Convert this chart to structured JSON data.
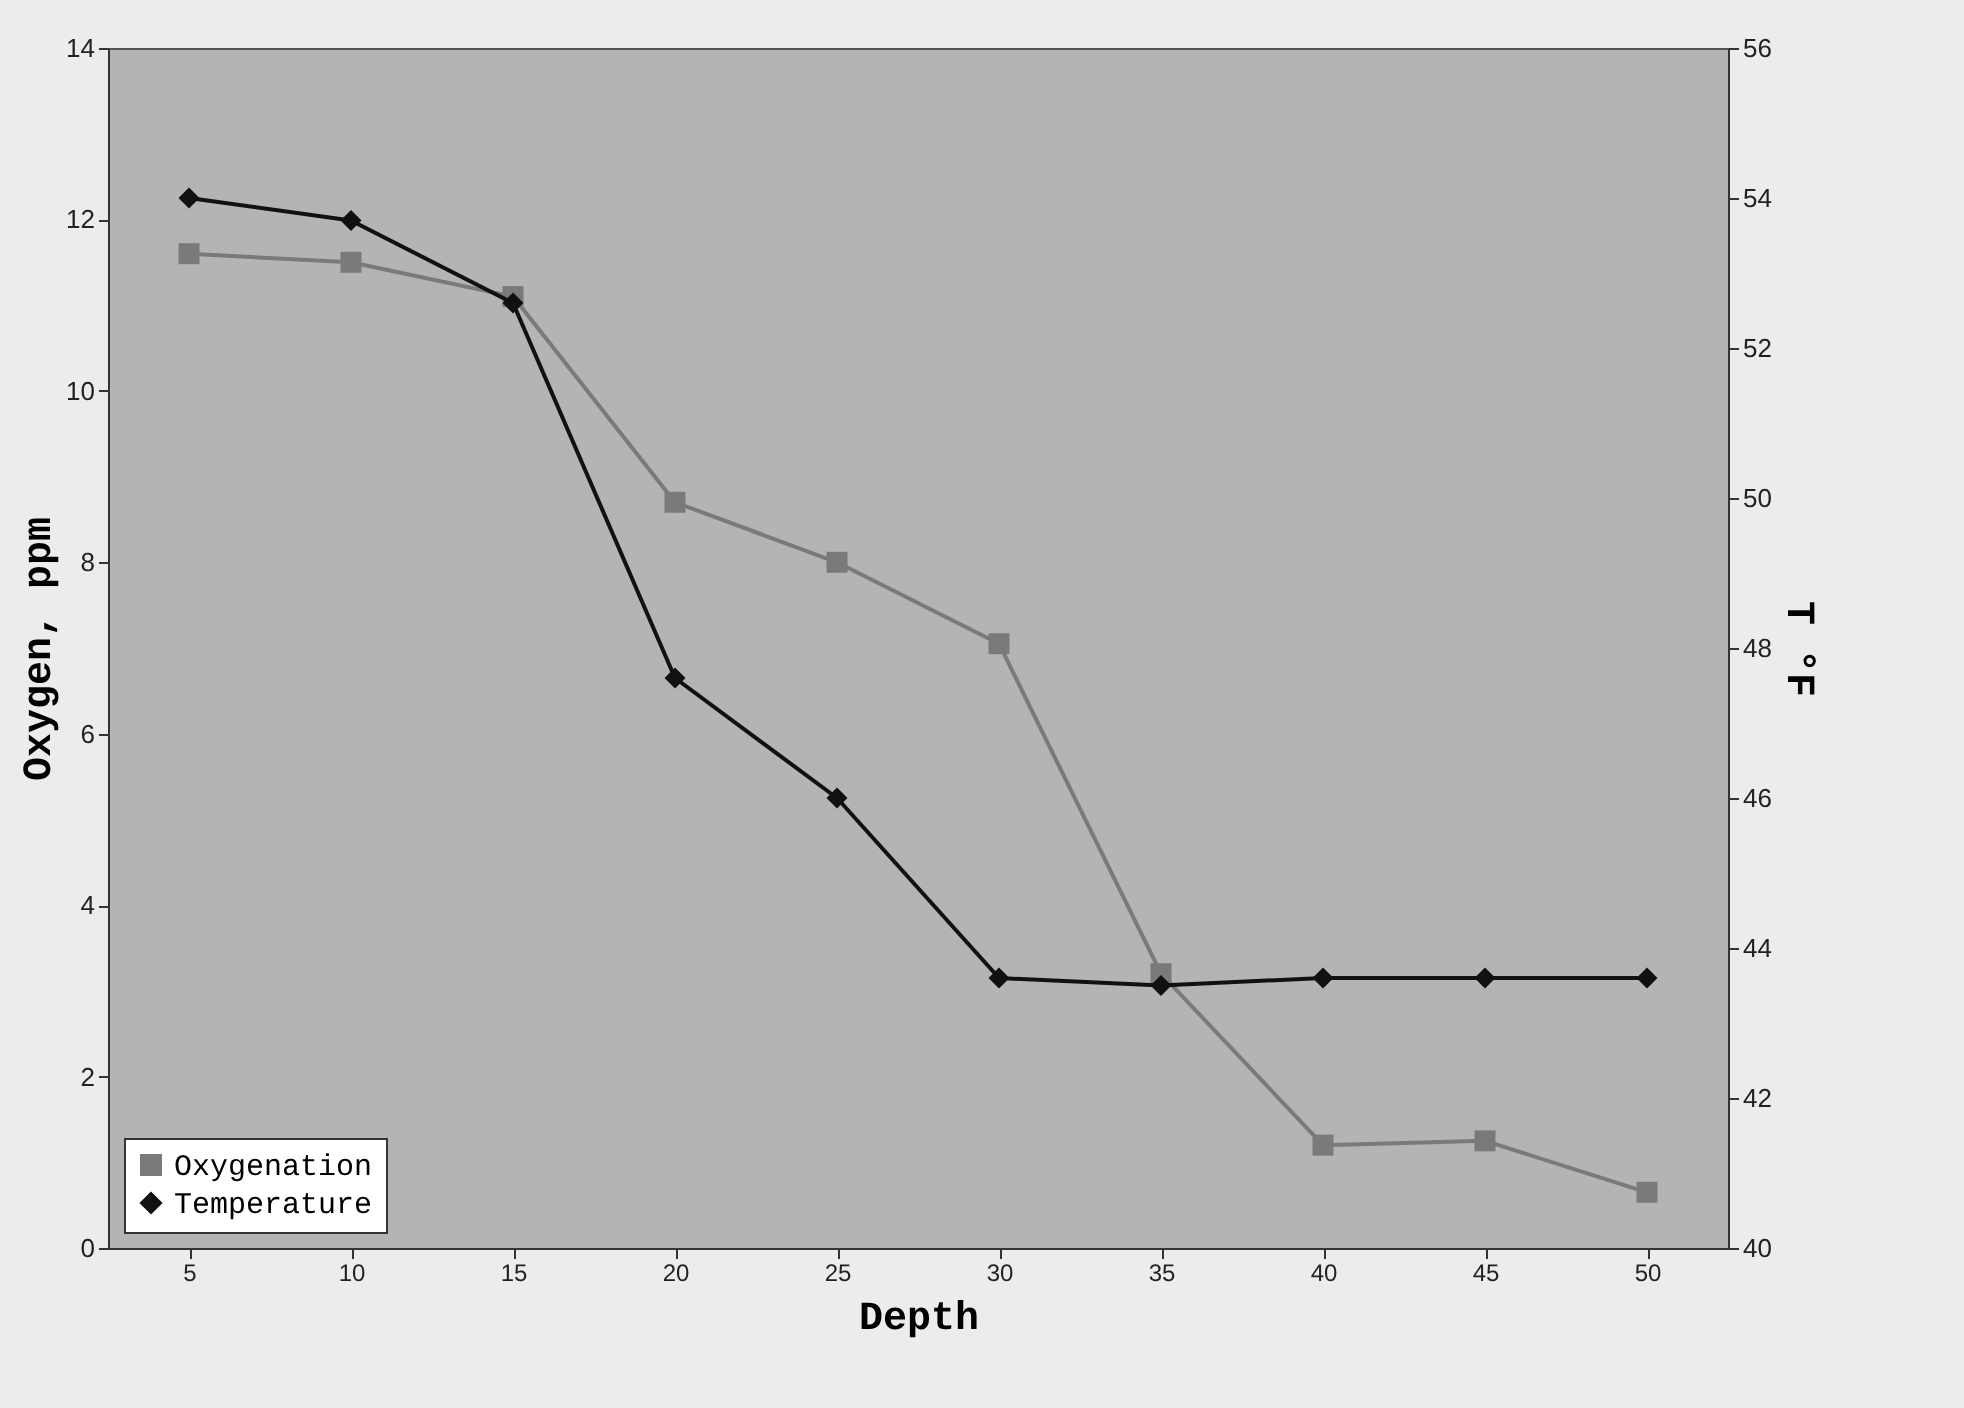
{
  "chart_data": {
    "type": "line",
    "xlabel": "Depth",
    "ylabel": "Oxygen, ppm",
    "y2label": "T °F",
    "categories": [
      "5",
      "10",
      "15",
      "20",
      "25",
      "30",
      "35",
      "40",
      "45",
      "50"
    ],
    "series": [
      {
        "name": "Oxygenation",
        "color": "#7a7a7a",
        "marker": "square",
        "values": [
          11.6,
          11.5,
          11.1,
          8.7,
          8.0,
          7.05,
          3.2,
          1.2,
          1.25,
          0.65
        ]
      },
      {
        "name": "Temperature",
        "color": "#111111",
        "marker": "diamond",
        "axis": "y2",
        "values": [
          54.0,
          53.7,
          52.6,
          47.6,
          46.0,
          43.6,
          43.5,
          43.6,
          43.6,
          43.6
        ]
      }
    ],
    "ylim": [
      0,
      14
    ],
    "yticks": [
      0,
      2,
      4,
      6,
      8,
      10,
      12,
      14
    ],
    "y2lim": [
      40,
      56
    ],
    "y2ticks": [
      40,
      42,
      44,
      46,
      48,
      50,
      52,
      54,
      56
    ],
    "grid": false,
    "legend": "bottom left"
  }
}
